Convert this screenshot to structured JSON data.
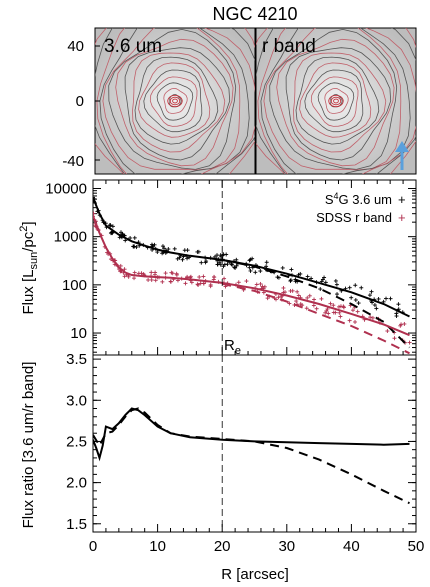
{
  "title": "NGC 4210",
  "image_panels": {
    "left_label": "3.6 um",
    "right_label": "r band",
    "y_ticks": [
      "40",
      "0",
      "-40"
    ],
    "arrow_color": "#5aa0dc"
  },
  "colors": {
    "s4g": "#000000",
    "sdss": "#b0304f",
    "image_bg": "#d2d2d2",
    "grid": "#7a7a7a"
  },
  "effective_radius_label": "R",
  "effective_radius_sub": "e",
  "chart_data": [
    {
      "type": "line",
      "panel": "flux",
      "ylabel": "Flux [L",
      "ylabel_sub": "sun",
      "ylabel_rest": "/pc",
      "ylabel_sup": "2",
      "ylabel_end": "]",
      "yscale": "log",
      "xlim": [
        0,
        50
      ],
      "ylim": [
        3.5,
        15000
      ],
      "yticks": [
        10,
        100,
        1000,
        10000
      ],
      "ytick_labels": [
        "10",
        "100",
        "1000",
        "10000"
      ],
      "effective_radius": 20,
      "legend": [
        {
          "pre": "S",
          "sup": "4",
          "post": "G 3.6 um",
          "marker": "+",
          "color": "#000000"
        },
        {
          "pre": "SDSS r band",
          "sup": "",
          "post": "",
          "marker": "+",
          "color": "#b0304f"
        }
      ],
      "series": [
        {
          "name": "S4G 3.6 um",
          "style": "solid",
          "color": "#000000",
          "x": [
            0,
            1,
            2,
            4,
            6,
            8,
            10,
            12,
            15,
            20,
            25,
            30,
            35,
            40,
            45,
            49
          ],
          "y": [
            6500,
            3000,
            1700,
            1100,
            800,
            650,
            540,
            470,
            400,
            330,
            250,
            170,
            110,
            70,
            40,
            22
          ]
        },
        {
          "name": "S4G 3.6 um model",
          "style": "dashed",
          "color": "#000000",
          "x": [
            20,
            25,
            30,
            35,
            40,
            45,
            49
          ],
          "y": [
            330,
            240,
            150,
            85,
            40,
            17,
            5
          ]
        },
        {
          "name": "SDSS r band",
          "style": "solid",
          "color": "#b0304f",
          "x": [
            0,
            1,
            2,
            3,
            4,
            5,
            6,
            8,
            10,
            12,
            15,
            20,
            25,
            30,
            35,
            40,
            45,
            49
          ],
          "y": [
            2700,
            1200,
            600,
            350,
            230,
            180,
            160,
            150,
            145,
            140,
            130,
            110,
            85,
            60,
            40,
            25,
            15,
            9
          ]
        },
        {
          "name": "SDSS r band model",
          "style": "dashed",
          "color": "#b0304f",
          "x": [
            20,
            25,
            30,
            35,
            40,
            45,
            49
          ],
          "y": [
            105,
            75,
            45,
            25,
            14,
            7,
            3.8
          ]
        }
      ]
    },
    {
      "type": "line",
      "panel": "ratio",
      "xlabel": "R [arcsec]",
      "ylabel": "Flux ratio [3.6 um/r band]",
      "xlim": [
        0,
        50
      ],
      "ylim": [
        1.4,
        3.55
      ],
      "xticks": [
        0,
        10,
        20,
        30,
        40,
        50
      ],
      "yticks": [
        1.5,
        2.0,
        2.5,
        3.0,
        3.5
      ],
      "ytick_labels": [
        "1.5",
        "2.0",
        "2.5",
        "3.0",
        "3.5"
      ],
      "effective_radius": 20,
      "series": [
        {
          "name": "ratio",
          "style": "solid",
          "color": "#000000",
          "x": [
            0,
            0.5,
            1,
            1.5,
            2,
            3,
            4,
            5,
            6,
            7,
            8,
            10,
            12,
            15,
            20,
            25,
            30,
            35,
            40,
            45,
            49
          ],
          "y": [
            2.52,
            2.42,
            2.3,
            2.45,
            2.68,
            2.65,
            2.72,
            2.82,
            2.9,
            2.88,
            2.82,
            2.68,
            2.6,
            2.55,
            2.52,
            2.5,
            2.49,
            2.48,
            2.47,
            2.46,
            2.47
          ]
        },
        {
          "name": "ratio model",
          "style": "dashed",
          "color": "#000000",
          "x": [
            0,
            1,
            2,
            3,
            4,
            5,
            6,
            7,
            8,
            10,
            12,
            15,
            20,
            25,
            30,
            35,
            40,
            45,
            49
          ],
          "y": [
            2.58,
            2.45,
            2.6,
            2.62,
            2.7,
            2.8,
            2.88,
            2.9,
            2.85,
            2.7,
            2.6,
            2.56,
            2.53,
            2.5,
            2.42,
            2.28,
            2.1,
            1.9,
            1.75
          ]
        }
      ]
    }
  ]
}
